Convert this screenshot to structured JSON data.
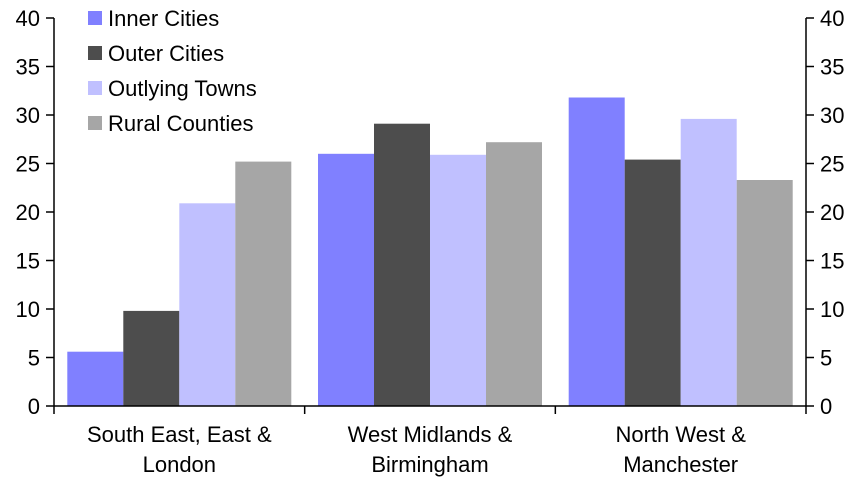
{
  "chart_data": {
    "type": "bar",
    "categories": [
      [
        "South East, East &",
        "London"
      ],
      [
        "West Midlands &",
        "Birmingham"
      ],
      [
        "North West &",
        "Manchester"
      ]
    ],
    "series": [
      {
        "name": "Inner Cities",
        "color": "#8080ff",
        "values": [
          5.6,
          26.0,
          31.8
        ]
      },
      {
        "name": "Outer Cities",
        "color": "#4d4d4d",
        "values": [
          9.8,
          29.1,
          25.4
        ]
      },
      {
        "name": "Outlying Towns",
        "color": "#c0c0ff",
        "values": [
          20.9,
          25.9,
          29.6
        ]
      },
      {
        "name": "Rural Counties",
        "color": "#a6a6a6",
        "values": [
          25.2,
          27.2,
          23.3
        ]
      }
    ],
    "y_ticks": [
      "0",
      "5",
      "10",
      "15",
      "20",
      "25",
      "30",
      "35",
      "40"
    ],
    "ylim": [
      0,
      40
    ],
    "y_axis_left": true,
    "y_axis_right": true,
    "grid": false,
    "legend_position": "top-left"
  }
}
